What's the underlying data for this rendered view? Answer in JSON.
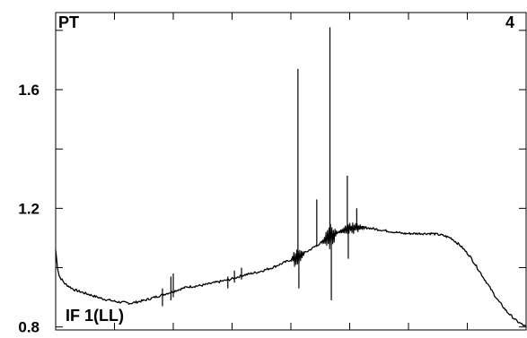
{
  "chart_data": {
    "type": "line",
    "title": "",
    "xlabel": "",
    "ylabel": "",
    "ylim": [
      0.79,
      1.86
    ],
    "xlim": [
      0,
      1
    ],
    "y_ticks": [
      {
        "value": 0.8,
        "label": "0.8"
      },
      {
        "value": 1.2,
        "label": "1.2"
      },
      {
        "value": 1.6,
        "label": "1.6"
      }
    ],
    "y_minor_ticks": [
      1.0,
      1.4,
      1.8
    ],
    "x_ticks": [
      0.0,
      0.125,
      0.25,
      0.375,
      0.5,
      0.625,
      0.75,
      0.875,
      1.0
    ],
    "grid": false,
    "labels": {
      "top_left": "PT",
      "top_right": "4",
      "bottom_left": "IF 1(LL)"
    },
    "line_color": "#000000",
    "series": [
      {
        "x": [
          0.0,
          0.004,
          0.008,
          0.02,
          0.04,
          0.07,
          0.1,
          0.13,
          0.16,
          0.19,
          0.22,
          0.25,
          0.28,
          0.31,
          0.34,
          0.37,
          0.4,
          0.43,
          0.46,
          0.49,
          0.52,
          0.54,
          0.56,
          0.58,
          0.6,
          0.62,
          0.64,
          0.66,
          0.68,
          0.7,
          0.72,
          0.74,
          0.76,
          0.78,
          0.8,
          0.82,
          0.84,
          0.86,
          0.88,
          0.9,
          0.92,
          0.94,
          0.96,
          0.98,
          1.0
        ],
        "values": [
          1.06,
          1.0,
          0.97,
          0.945,
          0.925,
          0.91,
          0.895,
          0.885,
          0.88,
          0.89,
          0.905,
          0.92,
          0.935,
          0.94,
          0.95,
          0.96,
          0.975,
          0.985,
          1.0,
          1.02,
          1.04,
          1.06,
          1.08,
          1.1,
          1.12,
          1.13,
          1.135,
          1.135,
          1.13,
          1.125,
          1.12,
          1.115,
          1.115,
          1.115,
          1.115,
          1.11,
          1.1,
          1.075,
          1.04,
          0.99,
          0.94,
          0.89,
          0.85,
          0.82,
          0.8
        ]
      }
    ],
    "spikes": [
      {
        "x": 0.227,
        "value": 0.87,
        "peak": 0.93
      },
      {
        "x": 0.245,
        "value": 0.89,
        "peak": 0.97
      },
      {
        "x": 0.25,
        "value": 0.9,
        "peak": 0.98
      },
      {
        "x": 0.366,
        "value": 0.93,
        "peak": 0.97
      },
      {
        "x": 0.38,
        "value": 0.95,
        "peak": 0.99
      },
      {
        "x": 0.395,
        "value": 0.96,
        "peak": 1.0
      },
      {
        "x": 0.515,
        "value": 1.03,
        "peak": 1.67
      },
      {
        "x": 0.517,
        "value": 1.03,
        "peak": 0.93
      },
      {
        "x": 0.555,
        "value": 1.07,
        "peak": 1.23
      },
      {
        "x": 0.583,
        "value": 1.1,
        "peak": 1.81
      },
      {
        "x": 0.586,
        "value": 1.1,
        "peak": 0.89
      },
      {
        "x": 0.62,
        "value": 1.13,
        "peak": 1.31
      },
      {
        "x": 0.622,
        "value": 1.13,
        "peak": 1.03
      },
      {
        "x": 0.64,
        "value": 1.135,
        "peak": 1.2
      }
    ],
    "noise_bands": [
      {
        "x_from": 0.5,
        "x_to": 0.53,
        "amplitude": 0.04
      },
      {
        "x_from": 0.565,
        "x_to": 0.6,
        "amplitude": 0.045
      },
      {
        "x_from": 0.6,
        "x_to": 0.66,
        "amplitude": 0.02
      }
    ]
  }
}
